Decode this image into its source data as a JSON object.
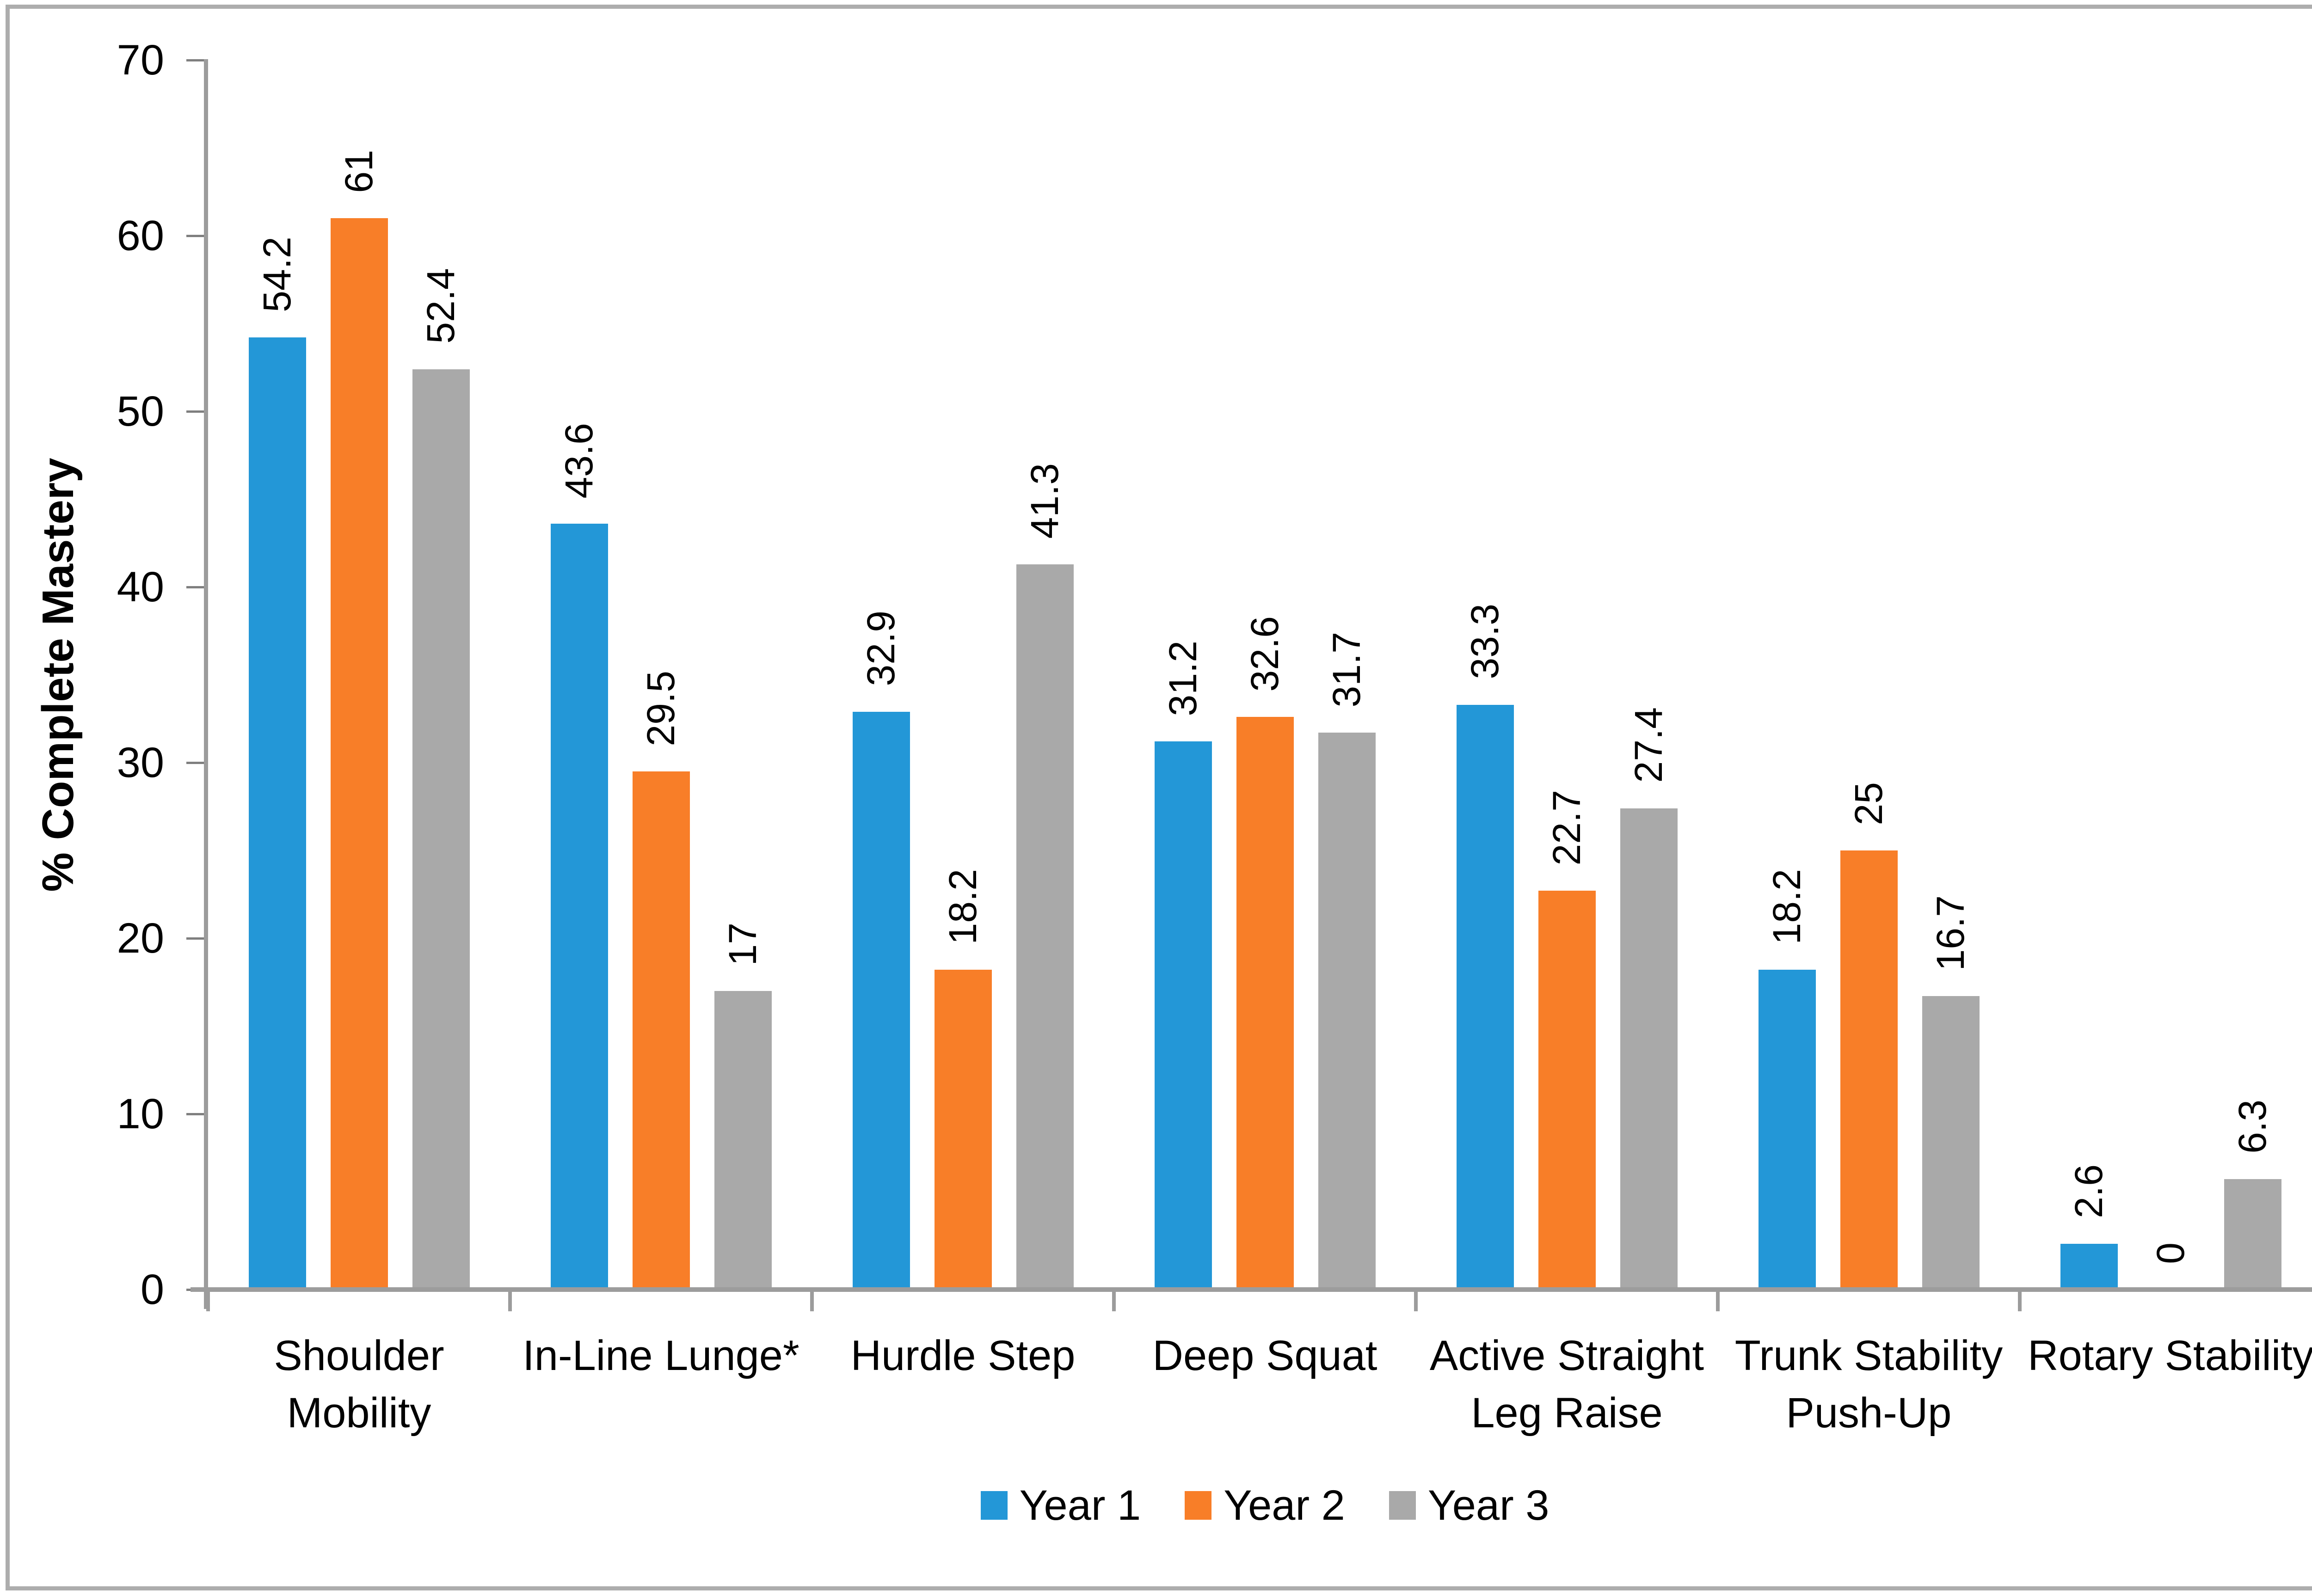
{
  "chart_data": {
    "type": "bar",
    "title": "",
    "ylabel": "% Complete Mastery",
    "xlabel": "",
    "ylim": [
      0,
      70
    ],
    "yticks": [
      0,
      10,
      20,
      30,
      40,
      50,
      60,
      70
    ],
    "grid": "off",
    "legend_position": "bottom",
    "categories": [
      "Shoulder Mobility",
      "In-Line Lunge*",
      "Hurdle Step",
      "Deep Squat",
      "Active Straight Leg Raise",
      "Trunk Stability Push-Up",
      "Rotary Stability"
    ],
    "category_label_lines": [
      [
        "Shoulder",
        "Mobility"
      ],
      [
        "In-Line Lunge*"
      ],
      [
        "Hurdle Step"
      ],
      [
        "Deep Squat"
      ],
      [
        "Active Straight",
        "Leg Raise"
      ],
      [
        "Trunk Stability",
        "Push-Up"
      ],
      [
        "Rotary Stability"
      ]
    ],
    "series": [
      {
        "name": "Year 1",
        "color": "#2397d7",
        "values": [
          54.2,
          43.6,
          32.9,
          31.2,
          33.3,
          18.2,
          2.6
        ]
      },
      {
        "name": "Year 2",
        "color": "#f87e28",
        "values": [
          61,
          29.5,
          18.2,
          32.6,
          22.7,
          25,
          0
        ]
      },
      {
        "name": "Year 3",
        "color": "#a9a9a9",
        "values": [
          52.4,
          17,
          41.3,
          31.7,
          27.4,
          16.7,
          6.3
        ]
      }
    ],
    "data_labels": [
      [
        "54.2",
        "61",
        "52.4"
      ],
      [
        "43.6",
        "29.5",
        "17"
      ],
      [
        "32.9",
        "18.2",
        "41.3"
      ],
      [
        "31.2",
        "32.6",
        "31.7"
      ],
      [
        "33.3",
        "22.7",
        "27.4"
      ],
      [
        "18.2",
        "25",
        "16.7"
      ],
      [
        "2.6",
        "0",
        "6.3"
      ]
    ],
    "colors": {
      "axis": "#9c9c9c",
      "tick": "#7f7f7f",
      "text": "#000000",
      "frame_border": "#adadad",
      "background": "#ffffff"
    }
  }
}
